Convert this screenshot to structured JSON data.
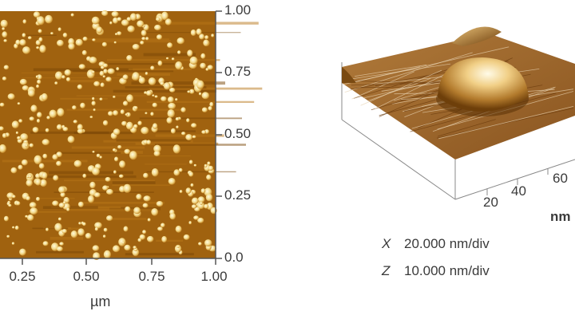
{
  "afm_2d": {
    "y_ticks": [
      "1.00",
      "0.75",
      "0.50",
      "0.25",
      "0.0"
    ],
    "x_ticks": [
      "0.25",
      "0.50",
      "0.75",
      "1.00"
    ],
    "x_unit": "µm",
    "colors": {
      "background": "#a0620f",
      "dark": "#6e3f05",
      "particle": "#f7e7a0"
    }
  },
  "afm_3d": {
    "x_ticks": [
      "20",
      "40",
      "60"
    ],
    "axis_unit_partial": "nm",
    "scale": [
      {
        "axis": "X",
        "value": "20.000 nm/div"
      },
      {
        "axis": "Z",
        "value": "10.000 nm/div"
      }
    ],
    "colors": {
      "surface": "#a06a2a",
      "dome_light": "#fffbe8",
      "dome_dark": "#7a4a12"
    }
  }
}
